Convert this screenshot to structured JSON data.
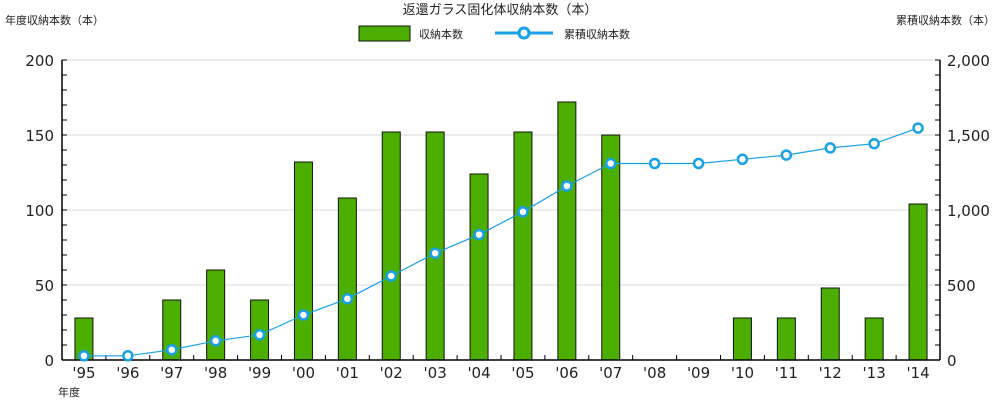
{
  "chart_data": {
    "type": "bar+line",
    "title": "返還ガラス固化体収納本数（本）",
    "ylabel_left": "年度収納本数（本）",
    "ylabel_right": "累積収納本数（本）",
    "xlabel": "年度",
    "categories": [
      "'95",
      "'96",
      "'97",
      "'98",
      "'99",
      "'00",
      "'01",
      "'02",
      "'03",
      "'04",
      "'05",
      "'06",
      "'07",
      "'08",
      "'09",
      "'10",
      "'11",
      "'12",
      "'13",
      "'14"
    ],
    "series": [
      {
        "name": "収納本数",
        "type": "bar",
        "axis": "left",
        "color": "#4caf00",
        "values": [
          28,
          0,
          40,
          60,
          40,
          132,
          108,
          152,
          152,
          124,
          152,
          172,
          150,
          0,
          0,
          28,
          28,
          48,
          28,
          104
        ]
      },
      {
        "name": "累積収納本数",
        "type": "line",
        "axis": "right",
        "color": "#18a0e8",
        "values": [
          28,
          28,
          68,
          128,
          168,
          300,
          408,
          560,
          712,
          836,
          988,
          1160,
          1310,
          1310,
          1310,
          1338,
          1366,
          1414,
          1442,
          1546
        ]
      }
    ],
    "ylim_left": [
      0,
      200
    ],
    "yticks_left": [
      "0",
      "50",
      "100",
      "150",
      "200"
    ],
    "ylim_right": [
      0,
      2000
    ],
    "yticks_right": [
      "0",
      "500",
      "1,000",
      "1,500",
      "2,000"
    ],
    "grid": true,
    "legend": "top-center"
  }
}
